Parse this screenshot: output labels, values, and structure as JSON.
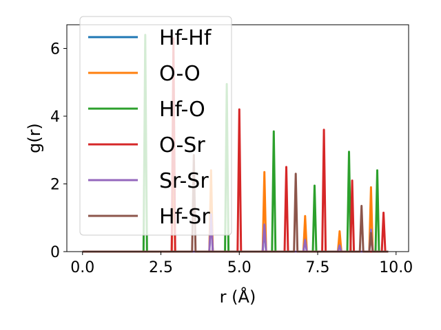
{
  "chart_data": {
    "type": "line",
    "xlabel": "r (Å)",
    "ylabel": "g(r)",
    "xlim": [
      -0.5,
      10.4
    ],
    "ylim": [
      0,
      6.7
    ],
    "xticks": [
      0.0,
      2.5,
      5.0,
      7.5,
      10.0
    ],
    "xtick_labels": [
      "0.0",
      "2.5",
      "5.0",
      "7.5",
      "10.0"
    ],
    "yticks": [
      0,
      2,
      4,
      6
    ],
    "ytick_labels": [
      "0",
      "2",
      "4",
      "6"
    ],
    "grid": false,
    "legend_position": "upper-left",
    "series": [
      {
        "name": "Hf-Hf",
        "color": "#1f77b4",
        "peaks": [
          [
            4.1,
            1.2
          ],
          [
            5.8,
            0.75
          ],
          [
            7.1,
            0.38
          ],
          [
            8.2,
            0.2
          ],
          [
            9.2,
            0.6
          ]
        ]
      },
      {
        "name": "O-O",
        "color": "#ff7f0e",
        "peaks": [
          [
            2.9,
            2.7
          ],
          [
            4.1,
            2.4
          ],
          [
            5.8,
            2.35
          ],
          [
            7.1,
            1.05
          ],
          [
            8.2,
            0.6
          ],
          [
            9.2,
            1.9
          ]
        ]
      },
      {
        "name": "Hf-O",
        "color": "#2ca02c",
        "peaks": [
          [
            2.0,
            6.4
          ],
          [
            4.6,
            4.95
          ],
          [
            6.1,
            3.55
          ],
          [
            7.4,
            1.95
          ],
          [
            8.5,
            2.95
          ],
          [
            9.4,
            2.4
          ]
        ]
      },
      {
        "name": "O-Sr",
        "color": "#d62728",
        "peaks": [
          [
            2.9,
            6.3
          ],
          [
            5.0,
            4.2
          ],
          [
            6.5,
            2.5
          ],
          [
            7.7,
            3.6
          ],
          [
            8.6,
            2.1
          ],
          [
            9.6,
            1.15
          ]
        ]
      },
      {
        "name": "Sr-Sr",
        "color": "#9467bd",
        "peaks": [
          [
            4.1,
            1.1
          ],
          [
            5.8,
            0.8
          ],
          [
            7.1,
            0.35
          ],
          [
            8.2,
            0.18
          ],
          [
            9.2,
            0.65
          ]
        ]
      },
      {
        "name": "Hf-Sr",
        "color": "#8c564b",
        "peaks": [
          [
            3.55,
            2.85
          ],
          [
            6.8,
            2.3
          ],
          [
            8.9,
            1.35
          ],
          [
            9.2,
            0.55
          ]
        ]
      }
    ]
  }
}
